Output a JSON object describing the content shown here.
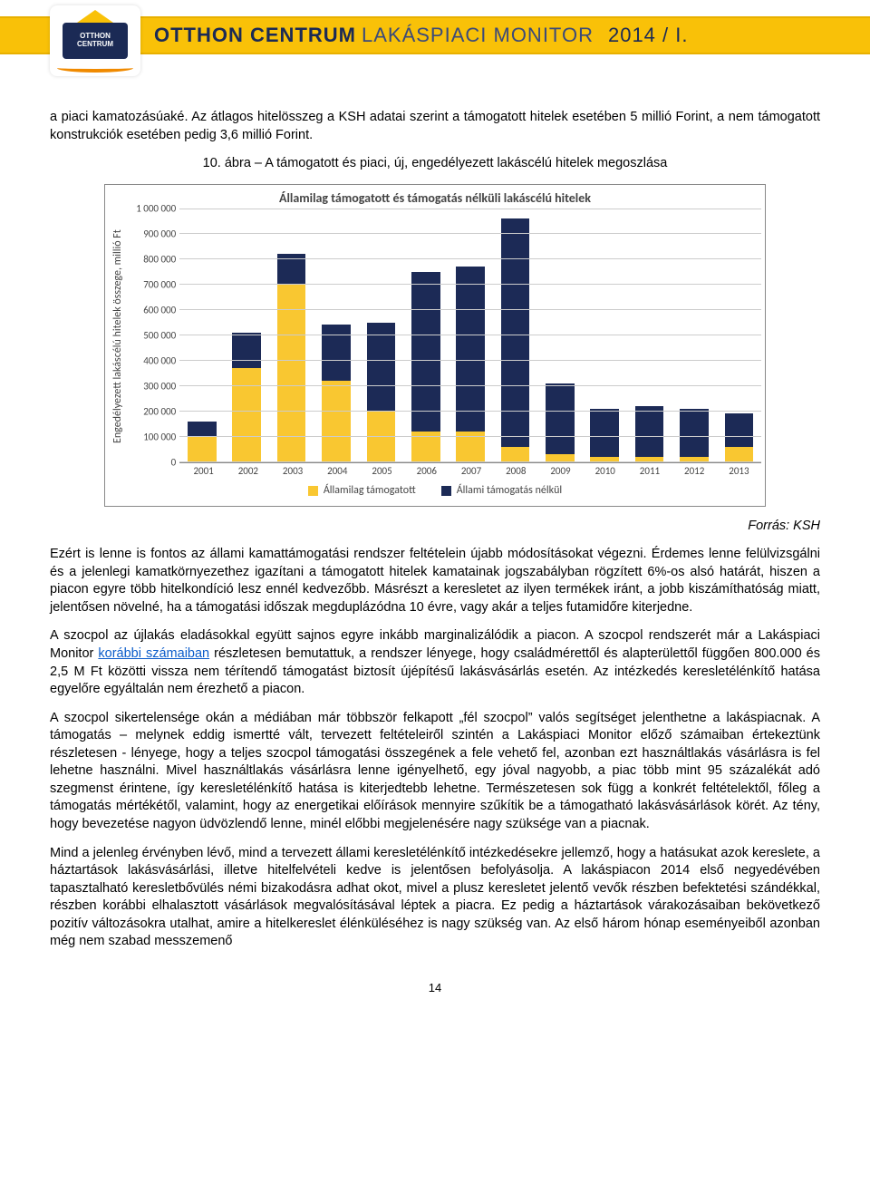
{
  "header": {
    "logo_text": "OTTHON CENTRUM",
    "title_strong": "OTTHON CENTRUM",
    "title_light": "LAKÁSPIACI MONITOR",
    "title_year": "2014 / I.",
    "brand_color": "#1b2a55",
    "band_color": "#f9c108"
  },
  "intro_text": "a piaci kamatozásúaké. Az átlagos hitelösszeg a KSH adatai szerint a támogatott hitelek esetében 5 millió Forint, a nem támogatott konstrukciók esetében pedig 3,6 millió Forint.",
  "chart_caption": "10. ábra – A támogatott és piaci, új, engedélyezett lakáscélú hitelek megoszlása",
  "chart": {
    "type": "stacked-bar",
    "title": "Államilag támogatott és támogatás nélküli lakáscélú hitelek",
    "yaxis_label": "Engedélyezett lakáscélú hitelek összege,\nmillió Ft",
    "ymin": 0,
    "ymax": 1000000,
    "ytick_step": 100000,
    "yticks": [
      "0",
      "100 000",
      "200 000",
      "300 000",
      "400 000",
      "500 000",
      "600 000",
      "700 000",
      "800 000",
      "900 000",
      "1 000 000"
    ],
    "categories": [
      "2001",
      "2002",
      "2003",
      "2004",
      "2005",
      "2006",
      "2007",
      "2008",
      "2009",
      "2010",
      "2011",
      "2012",
      "2013"
    ],
    "series": [
      {
        "name": "Államilag támogatott",
        "color": "#f9c731"
      },
      {
        "name": "Állami támogatás nélkül",
        "color": "#1c2a56"
      }
    ],
    "data": {
      "supported": [
        100000,
        370000,
        700000,
        320000,
        200000,
        120000,
        120000,
        60000,
        30000,
        20000,
        20000,
        20000,
        60000
      ],
      "unsupported": [
        60000,
        140000,
        120000,
        220000,
        350000,
        630000,
        650000,
        900000,
        280000,
        190000,
        200000,
        190000,
        130000
      ]
    },
    "background_color": "#ffffff",
    "grid_color": "#cccccc",
    "axis_color": "#888888",
    "label_color": "#444444",
    "title_fontsize": 14,
    "tick_fontsize": 11,
    "label_fontsize": 12,
    "bar_width_ratio": 0.64
  },
  "source_label": "Forrás: KSH",
  "link_text": "korábbi számaiban",
  "paragraphs": [
    "Ezért is lenne is fontos az állami kamattámogatási rendszer feltételein újabb módosításokat végezni. Érdemes lenne felülvizsgálni és a jelenlegi kamatkörnyezethez igazítani a támogatott hitelek kamatainak jogszabályban rögzített 6%-os alsó határát, hiszen a piacon egyre több hitelkondíció lesz ennél kedvezőbb. Másrészt a keresletet az ilyen termékek iránt, a jobb kiszámíthatóság miatt, jelentősen növelné, ha a támogatási időszak megduplázódna 10 évre, vagy akár a teljes futamidőre kiterjedne.",
    "A szocpol az újlakás eladásokkal együtt sajnos egyre inkább marginalizálódik a piacon. A szocpol rendszerét már a Lakáspiaci Monitor {{LINK}} részletesen bemutattuk, a rendszer lényege, hogy családmérettől és alapterülettől függően 800.000 és 2,5 M Ft közötti vissza nem térítendő támogatást biztosít újépítésű lakásvásárlás esetén. Az intézkedés keresletélénkítő hatása egyelőre egyáltalán nem érezhető a piacon.",
    "A szocpol sikertelensége okán a médiában már többször felkapott „fél szocpol” valós segítséget jelenthetne a lakáspiacnak. A támogatás – melynek eddig ismertté vált, tervezett feltételeiről szintén a Lakáspiaci Monitor előző számaiban értekeztünk részletesen - lényege, hogy a teljes szocpol támogatási összegének a fele vehető fel, azonban ezt használtlakás vásárlásra is fel lehetne használni. Mivel használtlakás vásárlásra lenne igényelhető, egy jóval nagyobb, a piac több mint 95 százalékát adó szegmenst érintene, így keresletélénkítő hatása is kiterjedtebb lehetne. Természetesen sok függ a konkrét feltételektől, főleg a támogatás mértékétől, valamint, hogy az energetikai előírások mennyire szűkítik be a támogatható lakásvásárlások körét. Az tény, hogy bevezetése nagyon üdvözlendő lenne, minél előbbi megjelenésére nagy szüksége van a piacnak.",
    "Mind a jelenleg érvényben lévő, mind a tervezett állami keresletélénkítő intézkedésekre jellemző, hogy a hatásukat azok kereslete, a háztartások lakásvásárlási, illetve hitelfelvételi kedve is jelentősen befolyásolja. A lakáspiacon 2014 első negyedévében tapasztalható keresletbővülés némi bizakodásra adhat okot, mivel a plusz keresletet jelentő vevők részben befektetési szándékkal, részben korábbi elhalasztott vásárlások megvalósításával léptek a piacra. Ez pedig a háztartások várakozásaiban bekövetkező pozitív változásokra utalhat, amire a hitelkereslet élénküléséhez is nagy szükség van. Az első három hónap eseményeiből azonban még nem szabad messzemenő"
  ],
  "page_number": "14"
}
